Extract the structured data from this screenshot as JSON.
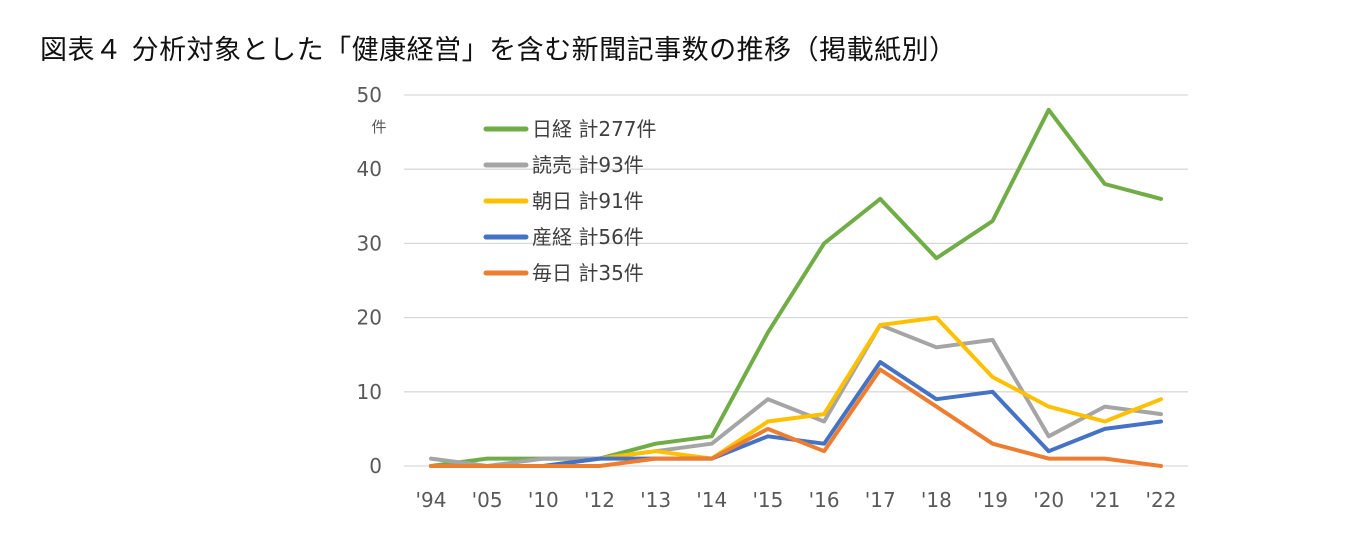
{
  "title": "図表４ 分析対象とした「健康経営」を含む新聞記事数の推移（掲載紙別）",
  "chart_data": {
    "type": "line",
    "title": "図表４ 分析対象とした「健康経営」を含む新聞記事数の推移（掲載紙別）",
    "ylabel": "件",
    "xlabel": "",
    "categories": [
      "'94",
      "'05",
      "'10",
      "'12",
      "'13",
      "'14",
      "'15",
      "'16",
      "'17",
      "'18",
      "'19",
      "'20",
      "'21",
      "'22"
    ],
    "ylim": [
      0,
      50
    ],
    "yticks": [
      0,
      10,
      20,
      30,
      40,
      50
    ],
    "grid": "horizontal",
    "legend_position": "top-left",
    "series": [
      {
        "name": "日経 計277件",
        "color": "#70ad47",
        "values": [
          0,
          1,
          1,
          1,
          3,
          4,
          18,
          30,
          36,
          28,
          33,
          48,
          38,
          36
        ]
      },
      {
        "name": "読売 計93件",
        "color": "#a5a5a5",
        "values": [
          1,
          0,
          1,
          1,
          2,
          3,
          9,
          6,
          19,
          16,
          17,
          4,
          8,
          7
        ]
      },
      {
        "name": "朝日 計91件",
        "color": "#ffc000",
        "values": [
          0,
          0,
          0,
          1,
          2,
          1,
          6,
          7,
          19,
          20,
          12,
          8,
          6,
          9
        ]
      },
      {
        "name": "産経 計56件",
        "color": "#4472c4",
        "values": [
          0,
          0,
          0,
          1,
          1,
          1,
          4,
          3,
          14,
          9,
          10,
          2,
          5,
          6
        ]
      },
      {
        "name": "毎日 計35件",
        "color": "#ed7d31",
        "values": [
          0,
          0,
          0,
          0,
          1,
          1,
          5,
          2,
          13,
          8,
          3,
          1,
          1,
          0
        ]
      }
    ]
  }
}
